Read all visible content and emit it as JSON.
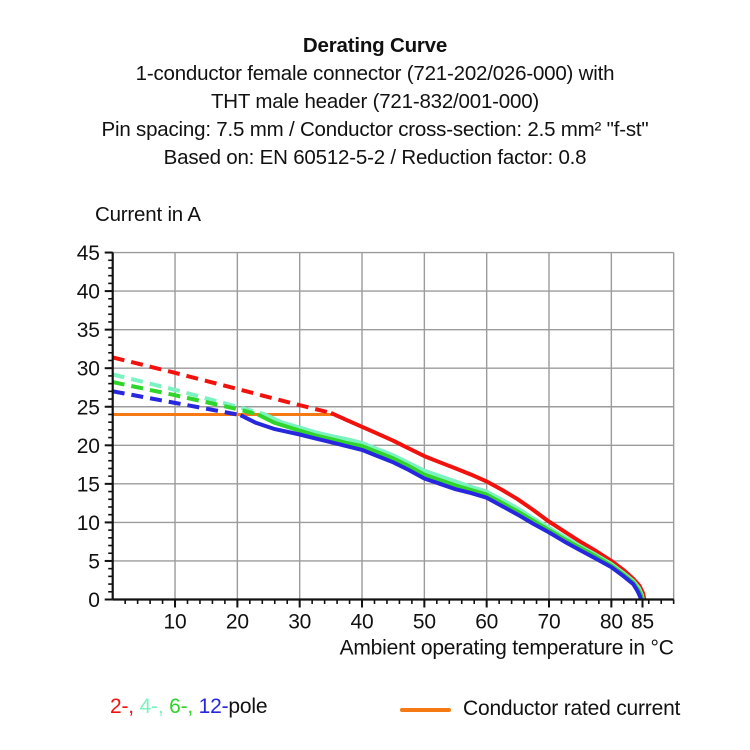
{
  "header": {
    "title": "Derating Curve",
    "lines": [
      "1-conductor female connector (721-202/026-000) with",
      "THT male header (721-832/001-000)",
      "Pin spacing: 7.5 mm / Conductor cross-section: 2.5 mm² \"f-st\"",
      "Based on: EN 60512-5-2 / Reduction factor: 0.8"
    ]
  },
  "legend": {
    "pole_segments": [
      {
        "text": "2-,",
        "color": "#f2120d"
      },
      {
        "text": " 4-,",
        "color": "#7cf2c0"
      },
      {
        "text": " 6-,",
        "color": "#2fd52a"
      },
      {
        "text": " 12-",
        "color": "#2727dd"
      },
      {
        "text": "pole",
        "color": "#111111"
      }
    ],
    "rated_current_label": "Conductor rated current",
    "rated_current_color": "#f57a14"
  },
  "chart_data": {
    "type": "line",
    "title": "Derating Curve",
    "xlabel": "Ambient operating temperature in °C",
    "ylabel": "Current in A",
    "xlim": [
      0,
      90
    ],
    "ylim": [
      0,
      45
    ],
    "grid": true,
    "x_gridline_step": 10,
    "y_gridline_step": 5,
    "x_major_ticks": [
      10,
      20,
      30,
      40,
      50,
      60,
      70,
      80,
      85
    ],
    "x_minor_tick_step": 2,
    "y_major_ticks": [
      0,
      5,
      10,
      15,
      20,
      25,
      30,
      35,
      40,
      45
    ],
    "y_minor_tick_step": 1,
    "grid_color": "#9b9b9b",
    "axis_color": "#111111",
    "rated_current": {
      "name": "Conductor rated current",
      "color": "#f57a14",
      "value": 24,
      "x_range": [
        0,
        35.5
      ]
    },
    "series": [
      {
        "name": "2-pole",
        "color": "#f2120d",
        "dashed": [
          [
            0,
            31.4
          ],
          [
            10,
            29.4
          ],
          [
            20,
            27.3
          ],
          [
            30,
            25.2
          ],
          [
            35,
            24.2
          ]
        ],
        "solid": [
          [
            35,
            24.2
          ],
          [
            37.5,
            23.3
          ],
          [
            40,
            22.4
          ],
          [
            42.5,
            21.5
          ],
          [
            45,
            20.6
          ],
          [
            47.5,
            19.6
          ],
          [
            50,
            18.6
          ],
          [
            52.5,
            17.8
          ],
          [
            55,
            17.0
          ],
          [
            57.5,
            16.2
          ],
          [
            60,
            15.3
          ],
          [
            62.5,
            14.2
          ],
          [
            65,
            13.0
          ],
          [
            67.5,
            11.6
          ],
          [
            70,
            10.1
          ],
          [
            72.5,
            8.8
          ],
          [
            75,
            7.5
          ],
          [
            77.5,
            6.3
          ],
          [
            80,
            5.0
          ],
          [
            82,
            3.8
          ],
          [
            83.5,
            2.7
          ],
          [
            84.5,
            1.8
          ],
          [
            85.1,
            0.8
          ],
          [
            85.3,
            0
          ]
        ]
      },
      {
        "name": "4-pole",
        "color": "#7cf2c0",
        "dashed": [
          [
            0,
            29.2
          ],
          [
            10,
            27.2
          ],
          [
            20,
            25.0
          ],
          [
            24.5,
            24.0
          ]
        ],
        "solid": [
          [
            24.5,
            24.0
          ],
          [
            27,
            23.0
          ],
          [
            30,
            22.3
          ],
          [
            32.5,
            21.7
          ],
          [
            35,
            21.2
          ],
          [
            37.5,
            20.8
          ],
          [
            40,
            20.3
          ],
          [
            42.5,
            19.5
          ],
          [
            45,
            18.7
          ],
          [
            47.5,
            17.7
          ],
          [
            50,
            16.7
          ],
          [
            52.5,
            16.0
          ],
          [
            55,
            15.3
          ],
          [
            57.5,
            14.6
          ],
          [
            60,
            14.0
          ],
          [
            62.5,
            12.9
          ],
          [
            65,
            11.8
          ],
          [
            67.5,
            10.5
          ],
          [
            70,
            9.3
          ],
          [
            72.5,
            8.1
          ],
          [
            75,
            6.9
          ],
          [
            77.5,
            5.8
          ],
          [
            80,
            4.6
          ],
          [
            82,
            3.4
          ],
          [
            83.5,
            2.4
          ],
          [
            84.4,
            1.5
          ],
          [
            84.9,
            0.6
          ],
          [
            85.05,
            0
          ]
        ]
      },
      {
        "name": "6-pole",
        "color": "#2fd52a",
        "dashed": [
          [
            0,
            28.2
          ],
          [
            10,
            26.5
          ],
          [
            20,
            24.7
          ],
          [
            23.3,
            24.0
          ]
        ],
        "solid": [
          [
            23.3,
            24.0
          ],
          [
            26,
            22.9
          ],
          [
            30,
            21.9
          ],
          [
            32.5,
            21.3
          ],
          [
            35,
            20.8
          ],
          [
            37.5,
            20.3
          ],
          [
            40,
            19.9
          ],
          [
            42.5,
            19.1
          ],
          [
            45,
            18.3
          ],
          [
            47.5,
            17.3
          ],
          [
            50,
            16.2
          ],
          [
            52.5,
            15.5
          ],
          [
            55,
            14.8
          ],
          [
            57.5,
            14.2
          ],
          [
            60,
            13.6
          ],
          [
            62.5,
            12.5
          ],
          [
            65,
            11.4
          ],
          [
            67.5,
            10.2
          ],
          [
            70,
            9.0
          ],
          [
            72.5,
            7.8
          ],
          [
            75,
            6.7
          ],
          [
            77.5,
            5.6
          ],
          [
            80,
            4.4
          ],
          [
            82,
            3.2
          ],
          [
            83.5,
            2.2
          ],
          [
            84.3,
            1.3
          ],
          [
            84.8,
            0.5
          ],
          [
            84.95,
            0
          ]
        ]
      },
      {
        "name": "12-pole",
        "color": "#2727dd",
        "dashed": [
          [
            0,
            27.0
          ],
          [
            10,
            25.5
          ],
          [
            20,
            24.0
          ],
          [
            20.5,
            23.9
          ]
        ],
        "solid": [
          [
            20.5,
            23.9
          ],
          [
            23,
            22.9
          ],
          [
            26,
            22.1
          ],
          [
            30,
            21.4
          ],
          [
            32.5,
            20.9
          ],
          [
            35,
            20.4
          ],
          [
            37.5,
            19.9
          ],
          [
            40,
            19.4
          ],
          [
            42.5,
            18.6
          ],
          [
            45,
            17.8
          ],
          [
            47.5,
            16.8
          ],
          [
            50,
            15.7
          ],
          [
            52.5,
            15.0
          ],
          [
            55,
            14.3
          ],
          [
            57.5,
            13.8
          ],
          [
            60,
            13.2
          ],
          [
            62.5,
            12.1
          ],
          [
            65,
            11.0
          ],
          [
            67.5,
            9.8
          ],
          [
            70,
            8.7
          ],
          [
            72.5,
            7.5
          ],
          [
            75,
            6.4
          ],
          [
            77.5,
            5.3
          ],
          [
            80,
            4.2
          ],
          [
            82,
            3.0
          ],
          [
            83.5,
            2.0
          ],
          [
            84.2,
            1.1
          ],
          [
            84.6,
            0.4
          ],
          [
            84.75,
            0
          ]
        ]
      }
    ]
  }
}
